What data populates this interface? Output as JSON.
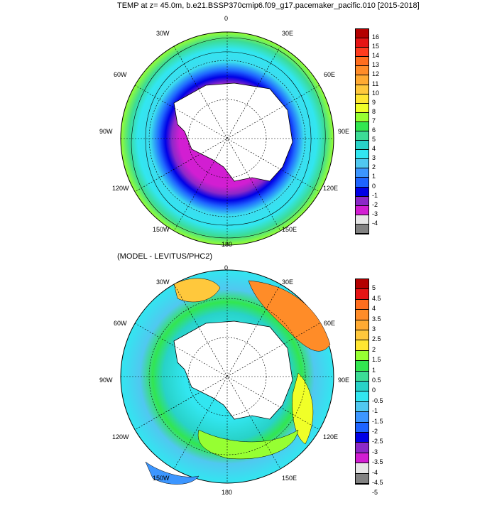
{
  "panel_top": {
    "title": "TEMP at z=  45.0m, b.e21.BSSP370cmip6.f09_g17.pacemaker_pacific.010 [2015-2018]",
    "lon_labels": {
      "0": "0",
      "30E": "30E",
      "60E": "60E",
      "90E": "90E",
      "120E": "120E",
      "150E": "150E",
      "180": "180",
      "150W": "150W",
      "120W": "120W",
      "90W": "90W",
      "60W": "60W",
      "30W": "30W"
    },
    "colorbar": {
      "labels": [
        "16",
        "15",
        "14",
        "13",
        "12",
        "11",
        "10",
        "9",
        "8",
        "7",
        "6",
        "5",
        "4",
        "3",
        "2",
        "1",
        "0",
        "-1",
        "-2",
        "-3",
        "-4"
      ],
      "colors": [
        "#b40000",
        "#e61414",
        "#ff3c1e",
        "#ff6e1e",
        "#ff8c28",
        "#ffaa32",
        "#ffc83c",
        "#ffe632",
        "#f0ff28",
        "#96ff32",
        "#32e650",
        "#3cdc96",
        "#28d2c8",
        "#32e6f0",
        "#50c8f0",
        "#3c96ff",
        "#1e64ff",
        "#0000e6",
        "#8c28c8",
        "#d21ed2",
        "#e6e6e6",
        "#828282"
      ]
    }
  },
  "panel_bottom": {
    "title": "(MODEL - LEVITUS/PHC2)",
    "lon_labels": {
      "0": "0",
      "30E": "30E",
      "60E": "60E",
      "90E": "90E",
      "120E": "120E",
      "150E": "150E",
      "180": "180",
      "150W": "150W",
      "120W": "120W",
      "90W": "90W",
      "60W": "60W",
      "30W": "30W"
    },
    "colorbar": {
      "labels": [
        "5",
        "4.5",
        "4",
        "3.5",
        "3",
        "2.5",
        "2",
        "1.5",
        "1",
        "0.5",
        "0",
        "-0.5",
        "-1",
        "-1.5",
        "-2",
        "-2.5",
        "-3",
        "-3.5",
        "-4",
        "-4.5",
        "-5"
      ],
      "colors": [
        "#b40000",
        "#e61414",
        "#ff6e1e",
        "#ff8c28",
        "#ffaa32",
        "#ffc83c",
        "#ffe632",
        "#96ff32",
        "#32e650",
        "#3cdc96",
        "#28d2c8",
        "#32e6f0",
        "#50c8f0",
        "#3c96ff",
        "#1e64ff",
        "#0000e6",
        "#8c28c8",
        "#d21ed2",
        "#e6e6e6",
        "#828282"
      ]
    }
  }
}
